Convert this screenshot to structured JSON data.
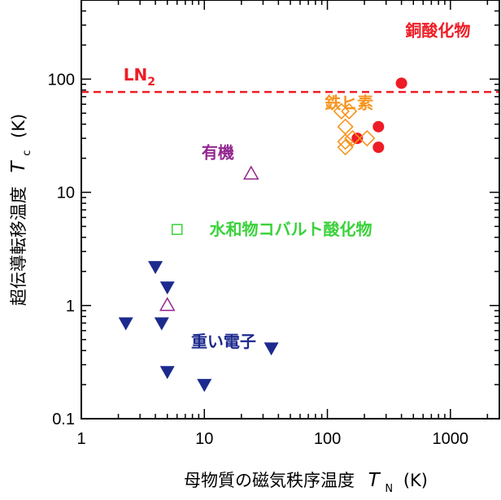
{
  "chart_data": {
    "type": "scatter",
    "x_scale": "log",
    "y_scale": "log",
    "xlim": [
      1,
      2500
    ],
    "ylim": [
      0.1,
      500
    ],
    "x_ticks": [
      "1",
      "10",
      "100",
      "1000"
    ],
    "y_ticks": [
      "0.1",
      "1",
      "10",
      "100"
    ],
    "xlabel": {
      "prefix": "母物質の磁気秩序温度",
      "var": "T",
      "sub": "N",
      "unit": "(K)"
    },
    "ylabel": {
      "prefix": "超伝導転移温度",
      "var": "T",
      "sub": "c",
      "unit": "(K)"
    },
    "reference_line": {
      "y": 77,
      "label_main": "LN",
      "label_sub": "2",
      "color": "#ee1c25",
      "style": "dashed"
    },
    "series": [
      {
        "name": "銅酸化物",
        "color": "#ee1c25",
        "marker": "filled-circle",
        "label_anchor": [
          430,
          240
        ],
        "points": [
          [
            400,
            92
          ],
          [
            260,
            38
          ],
          [
            175,
            30
          ],
          [
            260,
            25
          ]
        ]
      },
      {
        "name": "鉄ヒ素",
        "color": "#f7941d",
        "marker": "open-diamond",
        "label_anchor": [
          95,
          55
        ],
        "points": [
          [
            130,
            52
          ],
          [
            150,
            52
          ],
          [
            140,
            38
          ],
          [
            140,
            28
          ],
          [
            160,
            30
          ],
          [
            210,
            30
          ],
          [
            140,
            25
          ]
        ]
      },
      {
        "name": "有機",
        "color": "#92278f",
        "marker": "open-triangle",
        "label_anchor": [
          9.5,
          20
        ],
        "points": [
          [
            24,
            14.5
          ],
          [
            5,
            1.0
          ]
        ]
      },
      {
        "name": "水和物コバルト酸化物",
        "color": "#39d239",
        "marker": "open-square",
        "label_anchor": [
          11,
          4.2
        ],
        "points": [
          [
            6,
            4.7
          ]
        ]
      },
      {
        "name": "重い電子",
        "color": "#1c2a8e",
        "marker": "filled-triangle-down",
        "label_anchor": [
          7.8,
          0.43
        ],
        "points": [
          [
            2.3,
            0.7
          ],
          [
            4,
            2.2
          ],
          [
            5,
            1.45
          ],
          [
            4.5,
            0.7
          ],
          [
            5,
            0.26
          ],
          [
            10,
            0.2
          ],
          [
            35,
            0.42
          ]
        ]
      }
    ]
  }
}
